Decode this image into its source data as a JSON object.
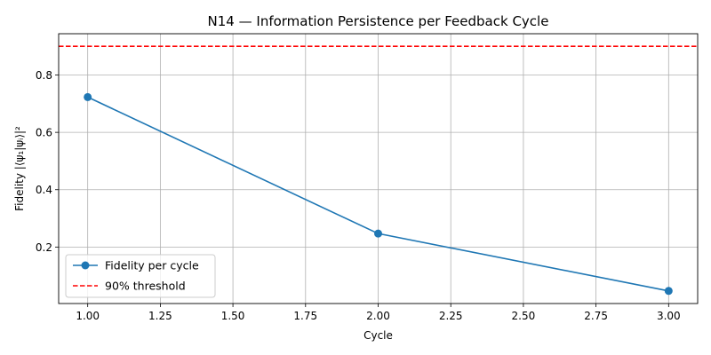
{
  "chart_data": {
    "type": "line",
    "title": "N14 — Information Persistence per Feedback Cycle",
    "xlabel": "Cycle",
    "ylabel": "Fidelity |⟨ψ₁|ψᵢ⟩|²",
    "xlim": [
      0.9,
      3.1
    ],
    "ylim": [
      0.003,
      0.944
    ],
    "x_ticks": [
      1.0,
      1.25,
      1.5,
      1.75,
      2.0,
      2.25,
      2.5,
      2.75,
      3.0
    ],
    "x_tick_labels": [
      "1.00",
      "1.25",
      "1.50",
      "1.75",
      "2.00",
      "2.25",
      "2.50",
      "2.75",
      "3.00"
    ],
    "y_ticks": [
      0.2,
      0.4,
      0.6,
      0.8
    ],
    "y_tick_labels": [
      "0.2",
      "0.4",
      "0.6",
      "0.8"
    ],
    "grid": true,
    "legend_position": "lower-left",
    "series": [
      {
        "name": "Fidelity per cycle",
        "x": [
          1,
          2,
          3
        ],
        "y": [
          0.723,
          0.247,
          0.047
        ],
        "color": "#1f77b4",
        "style": "solid",
        "marker": "circle"
      }
    ],
    "reference_lines": [
      {
        "name": "90% threshold",
        "y": 0.9,
        "color": "#ff0000",
        "style": "dashed"
      }
    ]
  }
}
